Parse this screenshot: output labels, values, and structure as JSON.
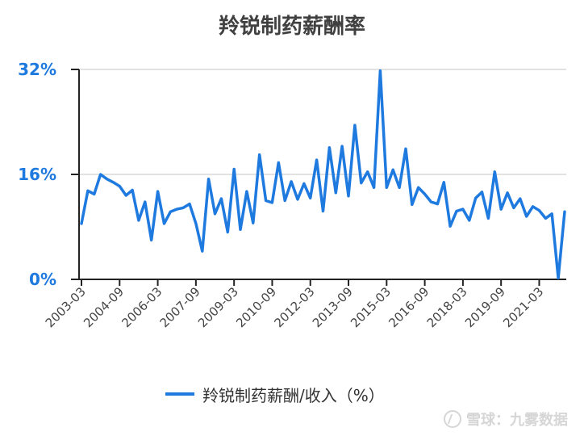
{
  "chart_data": {
    "type": "line",
    "title": "羚锐制药薪酬率",
    "y_tick_labels": [
      "0%",
      "16%",
      "32%"
    ],
    "ylim": [
      0,
      32
    ],
    "grid": true,
    "legend_position": "bottom",
    "x_tick_labels": [
      "2003-03",
      "2004-09",
      "2006-03",
      "2007-09",
      "2009-03",
      "2010-09",
      "2012-03",
      "2013-09",
      "2015-03",
      "2016-09",
      "2018-03",
      "2019-09",
      "2021-03"
    ],
    "series": [
      {
        "name": "羚锐制药薪酬/收入（%）",
        "color": "#1f7ae0",
        "values": [
          8.5,
          13.5,
          13.0,
          16.0,
          15.3,
          14.8,
          14.2,
          12.8,
          13.6,
          9.0,
          11.8,
          6.0,
          13.4,
          8.5,
          10.3,
          10.7,
          10.9,
          11.5,
          8.5,
          4.3,
          15.3,
          10.0,
          12.3,
          7.2,
          16.8,
          7.6,
          13.4,
          8.6,
          19.0,
          12.0,
          11.7,
          17.8,
          12.0,
          14.9,
          12.2,
          14.6,
          12.4,
          18.2,
          10.4,
          20.1,
          13.2,
          20.3,
          12.7,
          23.5,
          14.7,
          16.4,
          14.0,
          31.8,
          14.0,
          16.7,
          14.0,
          19.9,
          11.4,
          14.0,
          13.0,
          11.8,
          11.5,
          14.8,
          8.1,
          10.4,
          10.7,
          9.0,
          12.4,
          13.3,
          9.3,
          16.4,
          10.7,
          13.2,
          10.9,
          12.3,
          9.6,
          11.1,
          10.5,
          9.3,
          10.0,
          0.2,
          10.3
        ]
      }
    ]
  },
  "watermark": {
    "text": "雪球：九雾数据",
    "icon": "snowball-logo-icon"
  }
}
